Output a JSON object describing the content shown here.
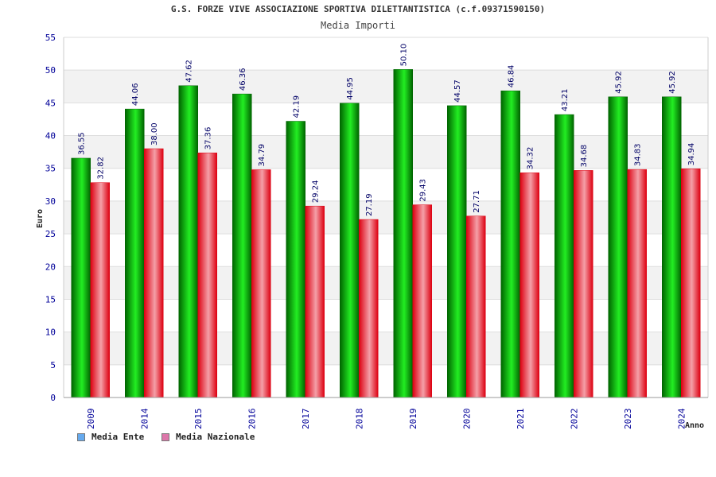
{
  "colors": {
    "ente_dark": "#006400",
    "ente_light": "#22ee22",
    "nazionale_dark": "#dd0011",
    "nazionale_light": "#f4a0a8",
    "legend_ente": "#66aaee",
    "legend_nazionale": "#dd77aa",
    "axis_text": "#000099",
    "value_text": "#000066"
  },
  "chart_data": {
    "type": "bar",
    "title": "G.S. FORZE VIVE ASSOCIAZIONE SPORTIVA DILETTANTISTICA (c.f.09371590150)",
    "subtitle": "Media Importi",
    "xlabel": "Anno",
    "ylabel": "Euro",
    "ylim": [
      0,
      55
    ],
    "yticks": [
      0,
      5,
      10,
      15,
      20,
      25,
      30,
      35,
      40,
      45,
      50,
      55
    ],
    "grid": true,
    "legend_position": "bottom-left",
    "categories": [
      "2009",
      "2014",
      "2015",
      "2016",
      "2017",
      "2018",
      "2019",
      "2020",
      "2021",
      "2022",
      "2023",
      "2024"
    ],
    "series": [
      {
        "name": "Media Ente",
        "values": [
          36.55,
          44.06,
          47.62,
          46.36,
          42.19,
          44.95,
          50.1,
          44.57,
          46.84,
          43.21,
          45.92,
          45.92
        ],
        "labels": [
          "36.55",
          "44.06",
          "47.62",
          "46.36",
          "42.19",
          "44.95",
          "50.10",
          "44.57",
          "46.84",
          "43.21",
          "45.92",
          "45.92"
        ]
      },
      {
        "name": "Media Nazionale",
        "values": [
          32.82,
          38.0,
          37.36,
          34.79,
          29.24,
          27.19,
          29.43,
          27.71,
          34.32,
          34.68,
          34.83,
          34.94
        ],
        "labels": [
          "32.82",
          "38.00",
          "37.36",
          "34.79",
          "29.24",
          "27.19",
          "29.43",
          "27.71",
          "34.32",
          "34.68",
          "34.83",
          "34.94"
        ]
      }
    ]
  }
}
